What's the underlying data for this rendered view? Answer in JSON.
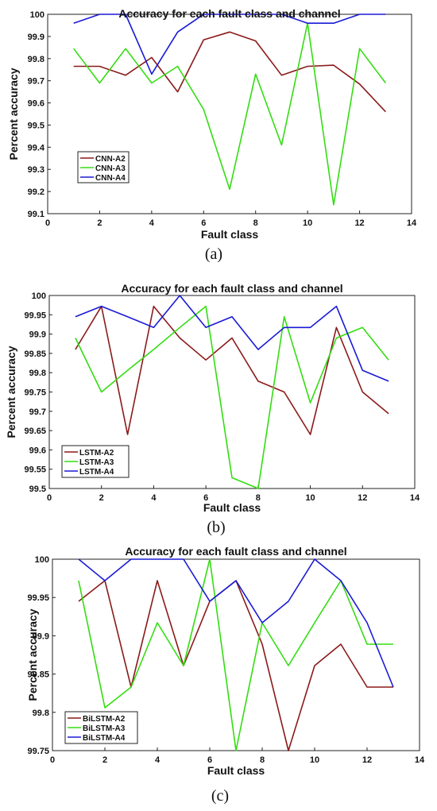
{
  "chart_data": [
    {
      "type": "line",
      "panel_label": "(a)",
      "title": "Accuracy for each fault class and channel",
      "xlabel": "Fault class",
      "ylabel": "Percent accuracy",
      "xlim": [
        0,
        14
      ],
      "ylim": [
        99.1,
        100
      ],
      "xticks": [
        "0",
        "2",
        "4",
        "6",
        "8",
        "10",
        "12",
        "14"
      ],
      "yticks": [
        "99.1",
        "99.2",
        "99.3",
        "99.4",
        "99.5",
        "99.6",
        "99.7",
        "99.8",
        "99.9",
        "100"
      ],
      "x": [
        1,
        2,
        3,
        4,
        5,
        6,
        7,
        8,
        9,
        10,
        11,
        12,
        13
      ],
      "legend_position": "middle-left",
      "series": [
        {
          "name": "CNN-A2",
          "color": "#8b1a1a",
          "values": [
            99.765,
            99.765,
            99.725,
            99.805,
            99.65,
            99.885,
            99.92,
            99.88,
            99.725,
            99.765,
            99.77,
            99.685,
            99.56
          ]
        },
        {
          "name": "CNN-A3",
          "color": "#33dd11",
          "values": [
            99.845,
            99.69,
            99.845,
            99.69,
            99.765,
            99.57,
            99.21,
            99.73,
            99.41,
            99.96,
            99.14,
            99.845,
            99.69
          ]
        },
        {
          "name": "CNN-A4",
          "color": "#1a1ad6",
          "values": [
            99.96,
            100,
            100,
            99.73,
            99.92,
            100,
            100,
            100,
            100,
            99.96,
            99.96,
            100,
            100
          ]
        }
      ]
    },
    {
      "type": "line",
      "panel_label": "(b)",
      "title": "Accuracy for each fault class and channel",
      "xlabel": "Fault class",
      "ylabel": "Percent accuracy",
      "xlim": [
        0,
        14
      ],
      "ylim": [
        99.5,
        100
      ],
      "xticks": [
        "0",
        "2",
        "4",
        "6",
        "8",
        "10",
        "12",
        "14"
      ],
      "yticks": [
        "99.5",
        "99.55",
        "99.6",
        "99.65",
        "99.7",
        "99.75",
        "99.8",
        "99.85",
        "99.9",
        "99.95",
        "100"
      ],
      "x": [
        1,
        2,
        3,
        4,
        5,
        6,
        7,
        8,
        9,
        10,
        11,
        12,
        13
      ],
      "legend_position": "bottom-left",
      "series": [
        {
          "name": "LSTM-A2",
          "color": "#8b1a1a",
          "values": [
            99.86,
            99.972,
            99.64,
            99.972,
            99.89,
            99.833,
            99.89,
            99.778,
            99.75,
            99.64,
            99.917,
            99.75,
            99.694
          ]
        },
        {
          "name": "LSTM-A3",
          "color": "#33dd11",
          "values": [
            99.89,
            99.75,
            99.806,
            99.86,
            99.917,
            99.972,
            99.528,
            99.5,
            99.945,
            99.722,
            99.89,
            99.917,
            99.833
          ]
        },
        {
          "name": "LSTM-A4",
          "color": "#1a1ad6",
          "values": [
            99.945,
            99.972,
            99.945,
            99.917,
            100,
            99.917,
            99.945,
            99.86,
            99.917,
            99.917,
            99.972,
            99.806,
            99.778
          ]
        }
      ]
    },
    {
      "type": "line",
      "panel_label": "(c)",
      "title": "Accuracy for each fault class and channel",
      "xlabel": "Fault class",
      "ylabel": "Percent accuracy",
      "xlim": [
        0,
        14
      ],
      "ylim": [
        99.75,
        100
      ],
      "xticks": [
        "0",
        "2",
        "4",
        "6",
        "8",
        "10",
        "12",
        "14"
      ],
      "yticks": [
        "99.75",
        "99.8",
        "99.85",
        "99.9",
        "99.95",
        "100"
      ],
      "x": [
        1,
        2,
        3,
        4,
        5,
        6,
        7,
        8,
        9,
        10,
        11,
        12,
        13
      ],
      "legend_position": "bottom-left",
      "series": [
        {
          "name": "BiLSTM-A2",
          "color": "#8b1a1a",
          "values": [
            99.945,
            99.972,
            99.833,
            99.972,
            99.861,
            99.945,
            99.972,
            99.889,
            99.75,
            99.861,
            99.889,
            99.833,
            99.833
          ]
        },
        {
          "name": "BiLSTM-A3",
          "color": "#33dd11",
          "values": [
            99.972,
            99.806,
            99.833,
            99.917,
            99.861,
            100,
            99.75,
            99.917,
            99.861,
            99.917,
            99.972,
            99.889,
            99.889
          ]
        },
        {
          "name": "BiLSTM-A4",
          "color": "#1a1ad6",
          "values": [
            100,
            99.972,
            100,
            100,
            100,
            99.945,
            99.972,
            99.917,
            99.945,
            100,
            99.972,
            99.917,
            99.833
          ]
        }
      ]
    }
  ]
}
